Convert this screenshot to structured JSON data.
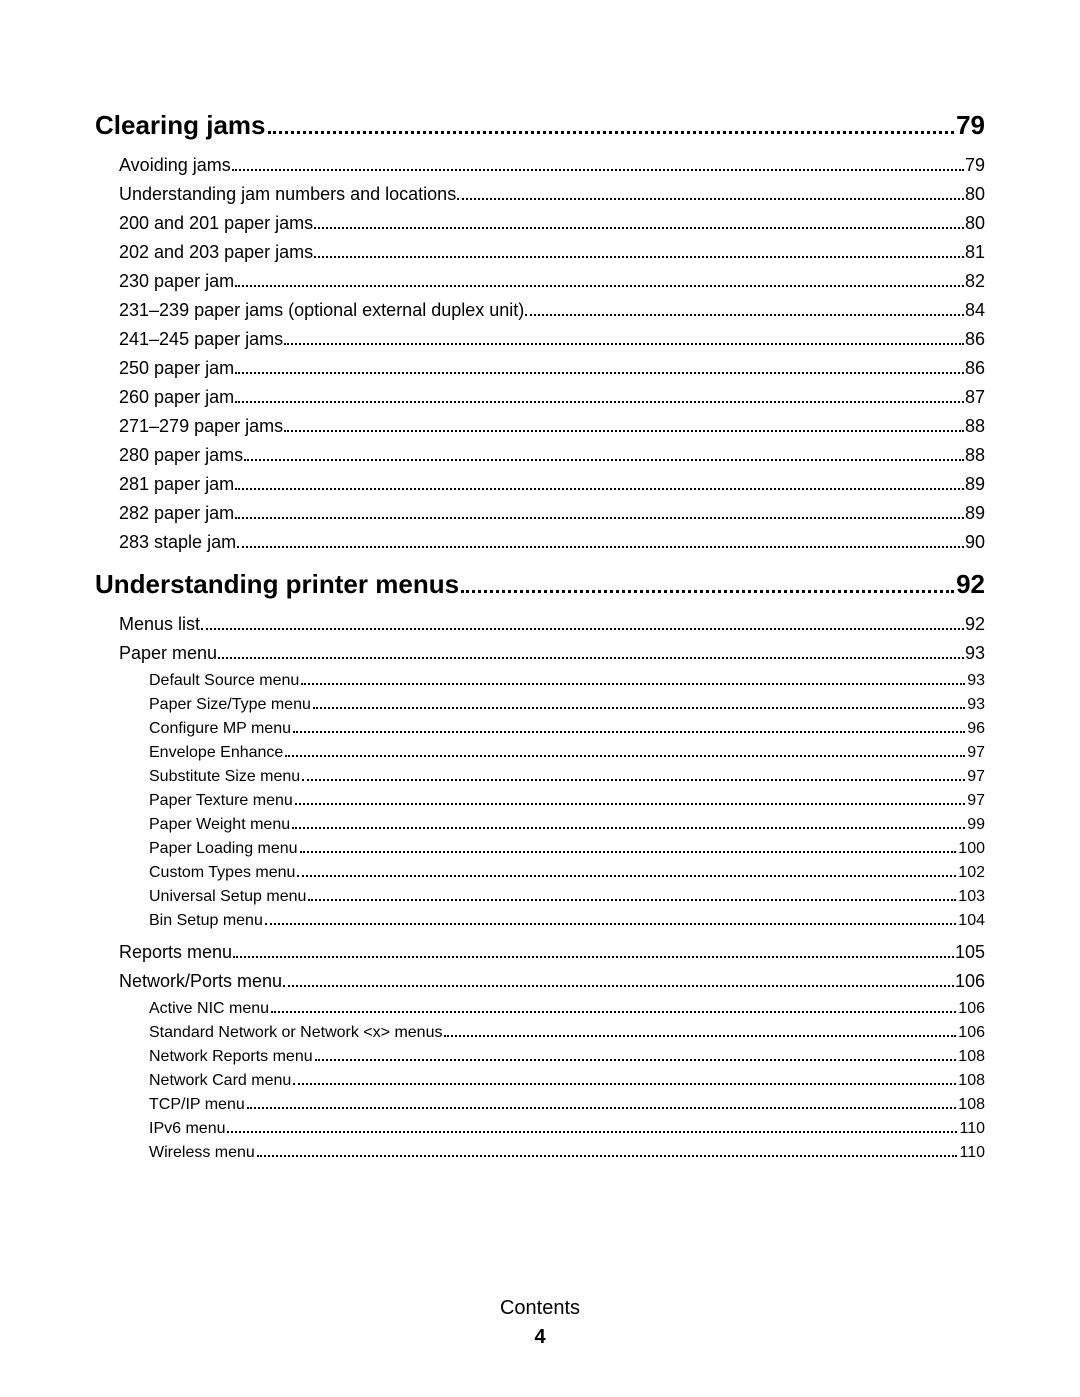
{
  "footer": {
    "label": "Contents",
    "page": "4"
  },
  "sections": [
    {
      "title": "Clearing jams",
      "page": "79",
      "entries": [
        {
          "label": "Avoiding jams",
          "page": "79"
        },
        {
          "label": "Understanding jam numbers and locations",
          "page": "80"
        },
        {
          "label": "200 and 201 paper jams",
          "page": "80"
        },
        {
          "label": "202 and 203 paper jams",
          "page": "81"
        },
        {
          "label": "230 paper jam",
          "page": "82"
        },
        {
          "label": "231–239 paper jams (optional external duplex unit)",
          "page": "84"
        },
        {
          "label": "241–245 paper jams",
          "page": "86"
        },
        {
          "label": "250 paper jam",
          "page": "86"
        },
        {
          "label": "260 paper jam",
          "page": "87"
        },
        {
          "label": "271–279 paper jams",
          "page": "88"
        },
        {
          "label": "280 paper jams",
          "page": "88"
        },
        {
          "label": "281 paper jam",
          "page": "89"
        },
        {
          "label": "282 paper jam",
          "page": "89"
        },
        {
          "label": "283 staple jam",
          "page": "90"
        }
      ]
    },
    {
      "title": "Understanding printer menus",
      "page": "92",
      "entries": [
        {
          "label": "Menus list",
          "page": "92"
        },
        {
          "label": "Paper menu",
          "page": "93",
          "sub": [
            {
              "label": "Default Source menu",
              "page": "93"
            },
            {
              "label": "Paper Size/Type menu",
              "page": "93"
            },
            {
              "label": "Configure MP menu",
              "page": "96"
            },
            {
              "label": "Envelope Enhance",
              "page": "97"
            },
            {
              "label": "Substitute Size menu",
              "page": "97"
            },
            {
              "label": "Paper Texture menu",
              "page": "97"
            },
            {
              "label": "Paper Weight menu",
              "page": "99"
            },
            {
              "label": "Paper Loading menu",
              "page": "100"
            },
            {
              "label": "Custom Types menu",
              "page": "102"
            },
            {
              "label": "Universal Setup menu",
              "page": "103"
            },
            {
              "label": "Bin Setup menu",
              "page": "104"
            }
          ]
        },
        {
          "label": "Reports menu",
          "page": "105"
        },
        {
          "label": "Network/Ports menu",
          "page": "106",
          "sub": [
            {
              "label": "Active NIC menu",
              "page": "106"
            },
            {
              "label": "Standard Network or Network <x> menus",
              "page": "106"
            },
            {
              "label": "Network Reports menu",
              "page": "108"
            },
            {
              "label": "Network Card menu",
              "page": "108"
            },
            {
              "label": "TCP/IP menu",
              "page": "108"
            },
            {
              "label": "IPv6 menu",
              "page": "110"
            },
            {
              "label": "Wireless menu",
              "page": "110"
            }
          ]
        }
      ]
    }
  ]
}
